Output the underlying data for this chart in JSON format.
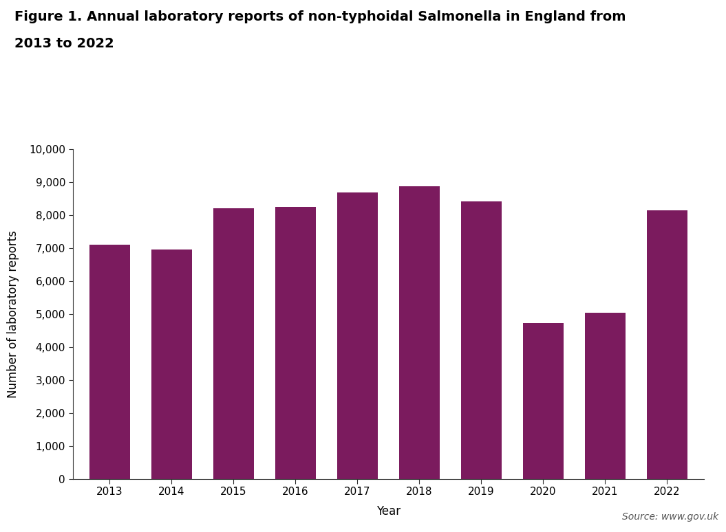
{
  "title_line1": "Figure 1. Annual laboratory reports of non-typhoidal Salmonella in England from",
  "title_line2": "2013 to 2022",
  "years": [
    2013,
    2014,
    2015,
    2016,
    2017,
    2018,
    2019,
    2020,
    2021,
    2022
  ],
  "values": [
    7100,
    6950,
    8200,
    8250,
    8680,
    8870,
    8420,
    4720,
    5040,
    8130
  ],
  "bar_color": "#7B1B5E",
  "xlabel": "Year",
  "ylabel": "Number of laboratory reports",
  "ylim": [
    0,
    10000
  ],
  "yticks": [
    0,
    1000,
    2000,
    3000,
    4000,
    5000,
    6000,
    7000,
    8000,
    9000,
    10000
  ],
  "ytick_labels": [
    "0",
    "1,000",
    "2,000",
    "3,000",
    "4,000",
    "5,000",
    "6,000",
    "7,000",
    "8,000",
    "9,000",
    "10,000"
  ],
  "source_text": "Source: www.gov.uk",
  "background_color": "#ffffff",
  "title_fontsize": 14,
  "axis_label_fontsize": 12,
  "tick_fontsize": 11,
  "source_fontsize": 10
}
